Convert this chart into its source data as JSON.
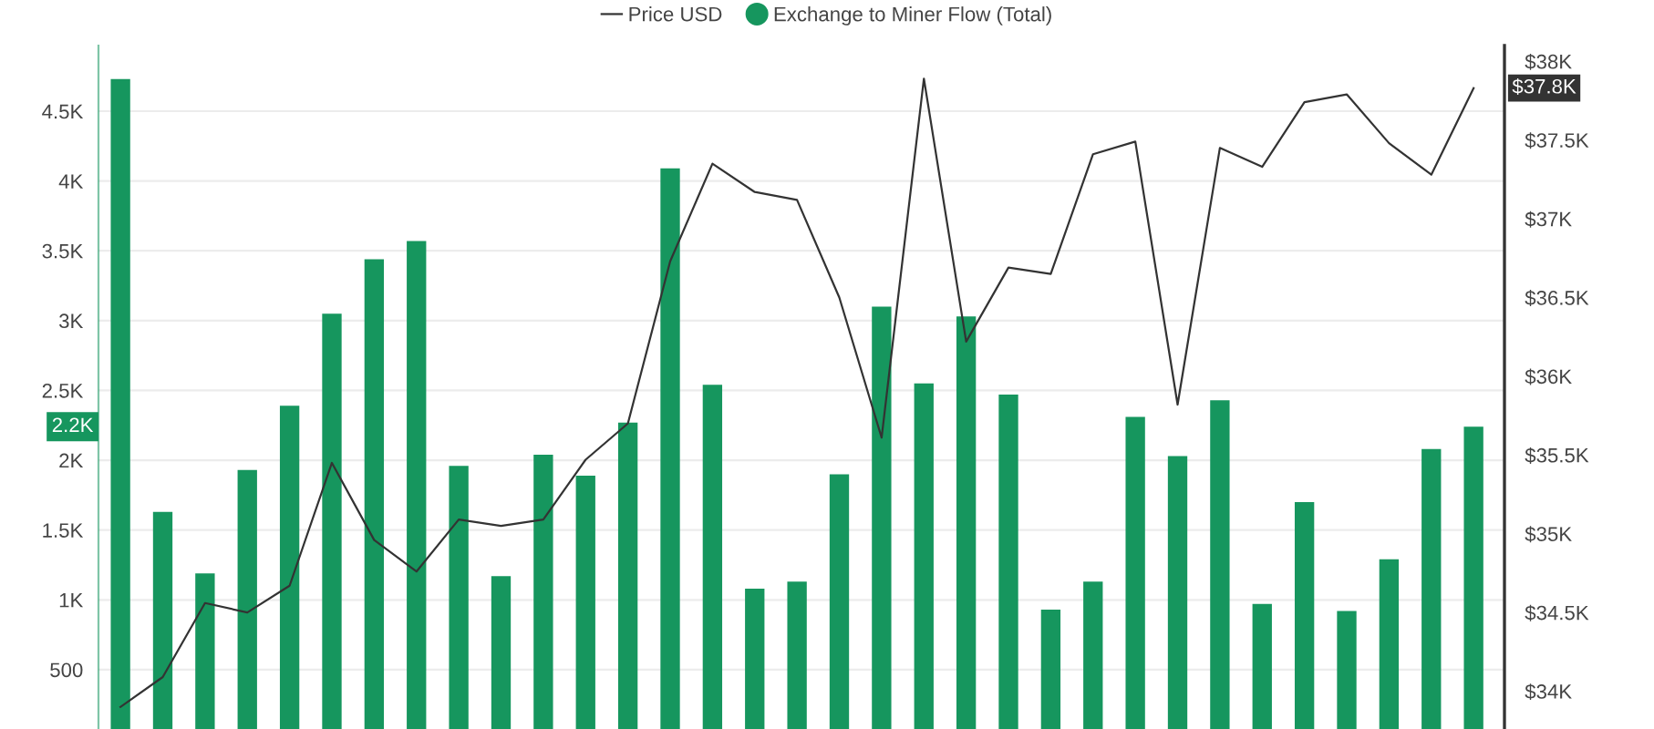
{
  "chart_data": {
    "type": "bar",
    "categories": [
      null,
      null,
      null,
      null,
      null,
      null,
      null,
      null,
      null,
      null,
      null,
      null,
      null,
      null,
      null,
      null,
      null,
      null,
      null,
      null,
      null,
      null,
      null,
      null,
      null,
      null,
      null,
      null,
      null,
      null,
      null,
      null,
      null
    ],
    "series": [
      {
        "name": "Price USD",
        "type": "line",
        "axis": "y2",
        "color": "#333333",
        "values": [
          33900,
          34090,
          34560,
          34500,
          34670,
          35450,
          34960,
          34760,
          35090,
          35050,
          35090,
          35470,
          35700,
          36730,
          37350,
          37170,
          37120,
          36500,
          35610,
          37890,
          36220,
          36690,
          36650,
          37410,
          37490,
          35820,
          37450,
          37330,
          37740,
          37790,
          37480,
          37280,
          37830
        ]
      },
      {
        "name": "Exchange to Miner Flow (Total)",
        "axis": "y",
        "color": "#16965e",
        "values": [
          4730,
          1630,
          1190,
          1930,
          2390,
          3050,
          3440,
          3570,
          1960,
          1170,
          2040,
          1890,
          2270,
          4090,
          2540,
          1080,
          1130,
          1900,
          3100,
          2550,
          3030,
          2470,
          930,
          1130,
          2310,
          2030,
          2430,
          970,
          1700,
          920,
          1290,
          2080,
          2240
        ]
      }
    ],
    "ylim": [
      75,
      4970
    ],
    "yticks": [
      500,
      {
        "value": 1000,
        "label": "1K"
      },
      {
        "value": 1500,
        "label": "1.5K"
      },
      {
        "value": 2000,
        "label": "2K"
      },
      {
        "value": 2500,
        "label": "2.5K"
      },
      {
        "value": 3000,
        "label": "3K"
      },
      {
        "value": 3500,
        "label": "3.5K"
      },
      {
        "value": 4000,
        "label": "4K"
      },
      {
        "value": 4500,
        "label": "4.5K"
      }
    ],
    "y2lim": [
      33760,
      38100
    ],
    "y2ticks": [
      {
        "value": 34000,
        "label": "$34K"
      },
      {
        "value": 34500,
        "label": "$34.5K"
      },
      {
        "value": 35000,
        "label": "$35K"
      },
      {
        "value": 35500,
        "label": "$35.5K"
      },
      {
        "value": 36000,
        "label": "$36K"
      },
      {
        "value": 36500,
        "label": "$36.5K"
      },
      {
        "value": 37000,
        "label": "$37K"
      },
      {
        "value": 37500,
        "label": "$37.5K"
      },
      {
        "value": 38000,
        "label": "$38K"
      }
    ],
    "grid": "y",
    "legend": "top",
    "tick_labels": "y",
    "annotations": [
      "$37.8K",
      "2.2K"
    ]
  }
}
